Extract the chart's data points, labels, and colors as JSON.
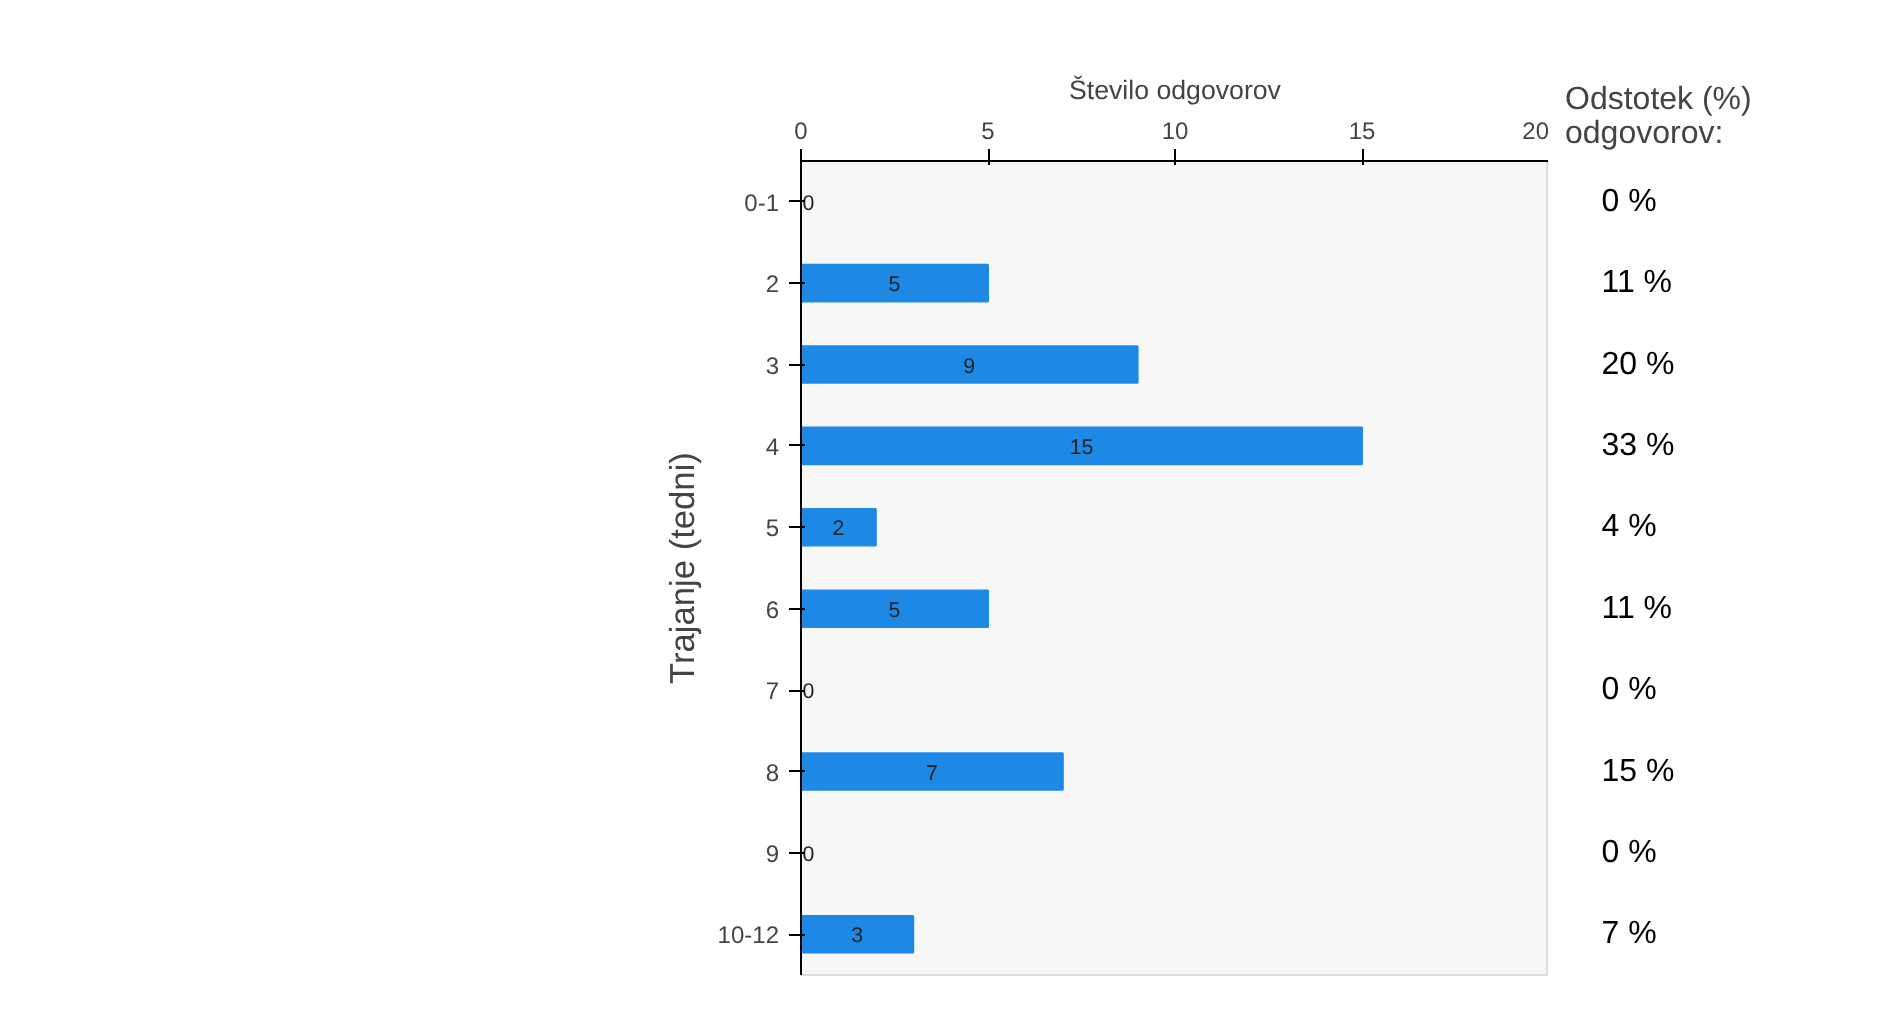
{
  "chart_data": {
    "type": "bar",
    "orientation": "horizontal",
    "xlabel": "Število odgovorov",
    "ylabel": "Trajanje (tedni)",
    "categories": [
      "0-1",
      "2",
      "3",
      "4",
      "5",
      "6",
      "7",
      "8",
      "9",
      "10-12"
    ],
    "values": [
      0,
      5,
      9,
      15,
      2,
      5,
      0,
      7,
      0,
      3
    ],
    "color": "#1e88e5",
    "data_labels": true,
    "xlim": [
      0,
      20
    ],
    "xticks": [
      0,
      5,
      10,
      15,
      20
    ],
    "grid": false,
    "annotations": [
      "Odstotek (%) odgovorov:",
      "0 %",
      "11 %",
      "20 %",
      "33 %",
      "4 %",
      "11 %",
      "0 %",
      "15 %",
      "0 %",
      "7 %"
    ]
  }
}
